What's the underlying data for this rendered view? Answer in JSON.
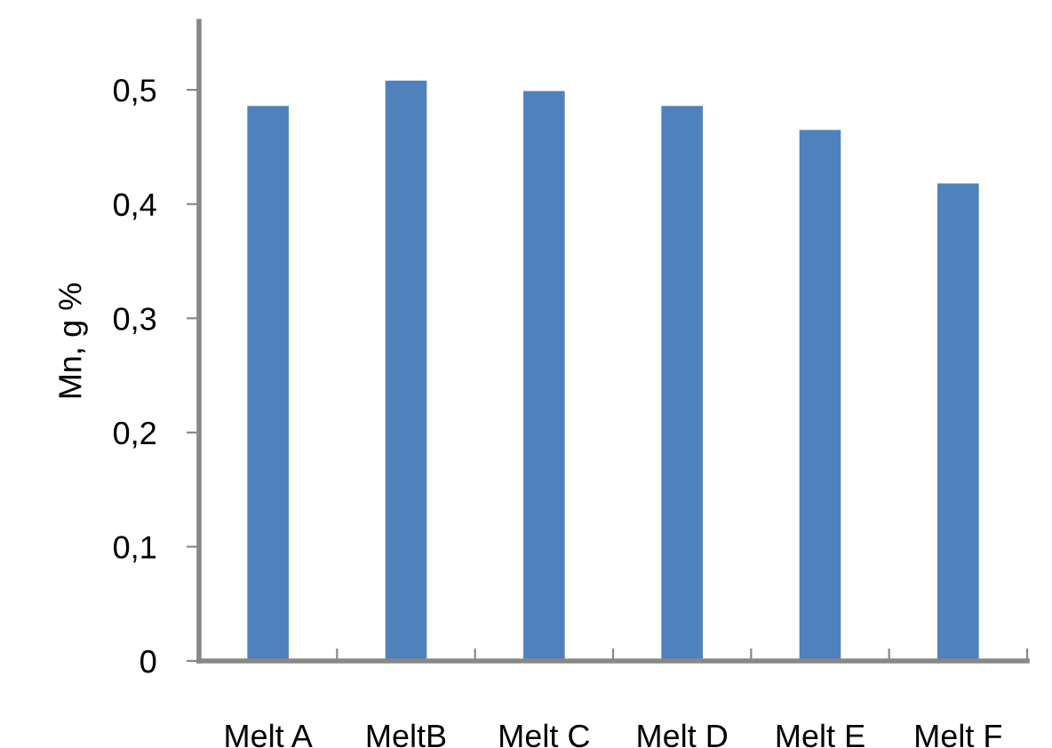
{
  "chart_data": {
    "type": "bar",
    "ylabel": "Mn, g %",
    "categories": [
      "Melt A",
      "MeltB",
      "Melt C",
      "Melt D",
      "Melt E",
      "Melt F"
    ],
    "values": [
      0.486,
      0.508,
      0.499,
      0.486,
      0.465,
      0.418
    ],
    "color": "#4f81bd",
    "ylim": [
      0,
      0.56
    ],
    "yticks": [
      0,
      {
        "value": 0.1,
        "label": "0,1"
      },
      {
        "value": 0.2,
        "label": "0,2"
      },
      {
        "value": 0.3,
        "label": "0,3"
      },
      {
        "value": 0.4,
        "label": "0,4"
      },
      {
        "value": 0.5,
        "label": "0,5"
      }
    ],
    "grid": false,
    "legend": false
  }
}
